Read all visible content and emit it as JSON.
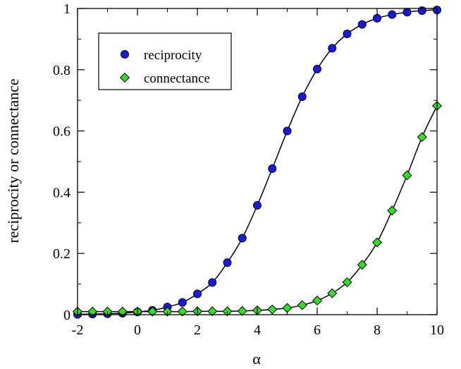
{
  "chart_data": {
    "type": "scatter",
    "xlabel": "α",
    "ylabel": "reciprocity or connectance",
    "xlim": [
      -2,
      10
    ],
    "ylim": [
      0,
      1
    ],
    "x_ticks": [
      "-2",
      "0",
      "2",
      "4",
      "6",
      "8",
      "10"
    ],
    "y_ticks": [
      "0",
      "0.2",
      "0.4",
      "0.6",
      "0.8",
      "1"
    ],
    "grid": false,
    "legend_position": "top-left",
    "fit_curve_color": "#000000",
    "series": [
      {
        "name": "reciprocity",
        "marker": "circle",
        "color": "#1a1adc",
        "x": [
          -2,
          -1.5,
          -1,
          -0.5,
          0,
          0.5,
          1,
          1.5,
          2,
          2.5,
          3,
          3.5,
          4,
          4.5,
          5,
          5.5,
          6,
          6.5,
          7,
          7.5,
          8,
          8.5,
          9,
          9.5,
          10
        ],
        "y": [
          0.001,
          0.002,
          0.003,
          0.005,
          0.009,
          0.014,
          0.025,
          0.04,
          0.068,
          0.105,
          0.17,
          0.25,
          0.357,
          0.477,
          0.6,
          0.712,
          0.802,
          0.87,
          0.917,
          0.948,
          0.968,
          0.98,
          0.988,
          0.993,
          0.995
        ]
      },
      {
        "name": "connectance",
        "marker": "diamond",
        "color": "#33dd22",
        "x": [
          -2,
          -1.5,
          -1,
          -0.5,
          0,
          0.5,
          1,
          1.5,
          2,
          2.5,
          3,
          3.5,
          4,
          4.5,
          5,
          5.5,
          6,
          6.5,
          7,
          7.5,
          8,
          8.5,
          9,
          9.5,
          10
        ],
        "y": [
          0.01,
          0.01,
          0.01,
          0.01,
          0.01,
          0.01,
          0.01,
          0.01,
          0.011,
          0.011,
          0.011,
          0.012,
          0.014,
          0.017,
          0.022,
          0.031,
          0.046,
          0.07,
          0.106,
          0.163,
          0.236,
          0.34,
          0.455,
          0.58,
          0.682
        ]
      }
    ]
  }
}
